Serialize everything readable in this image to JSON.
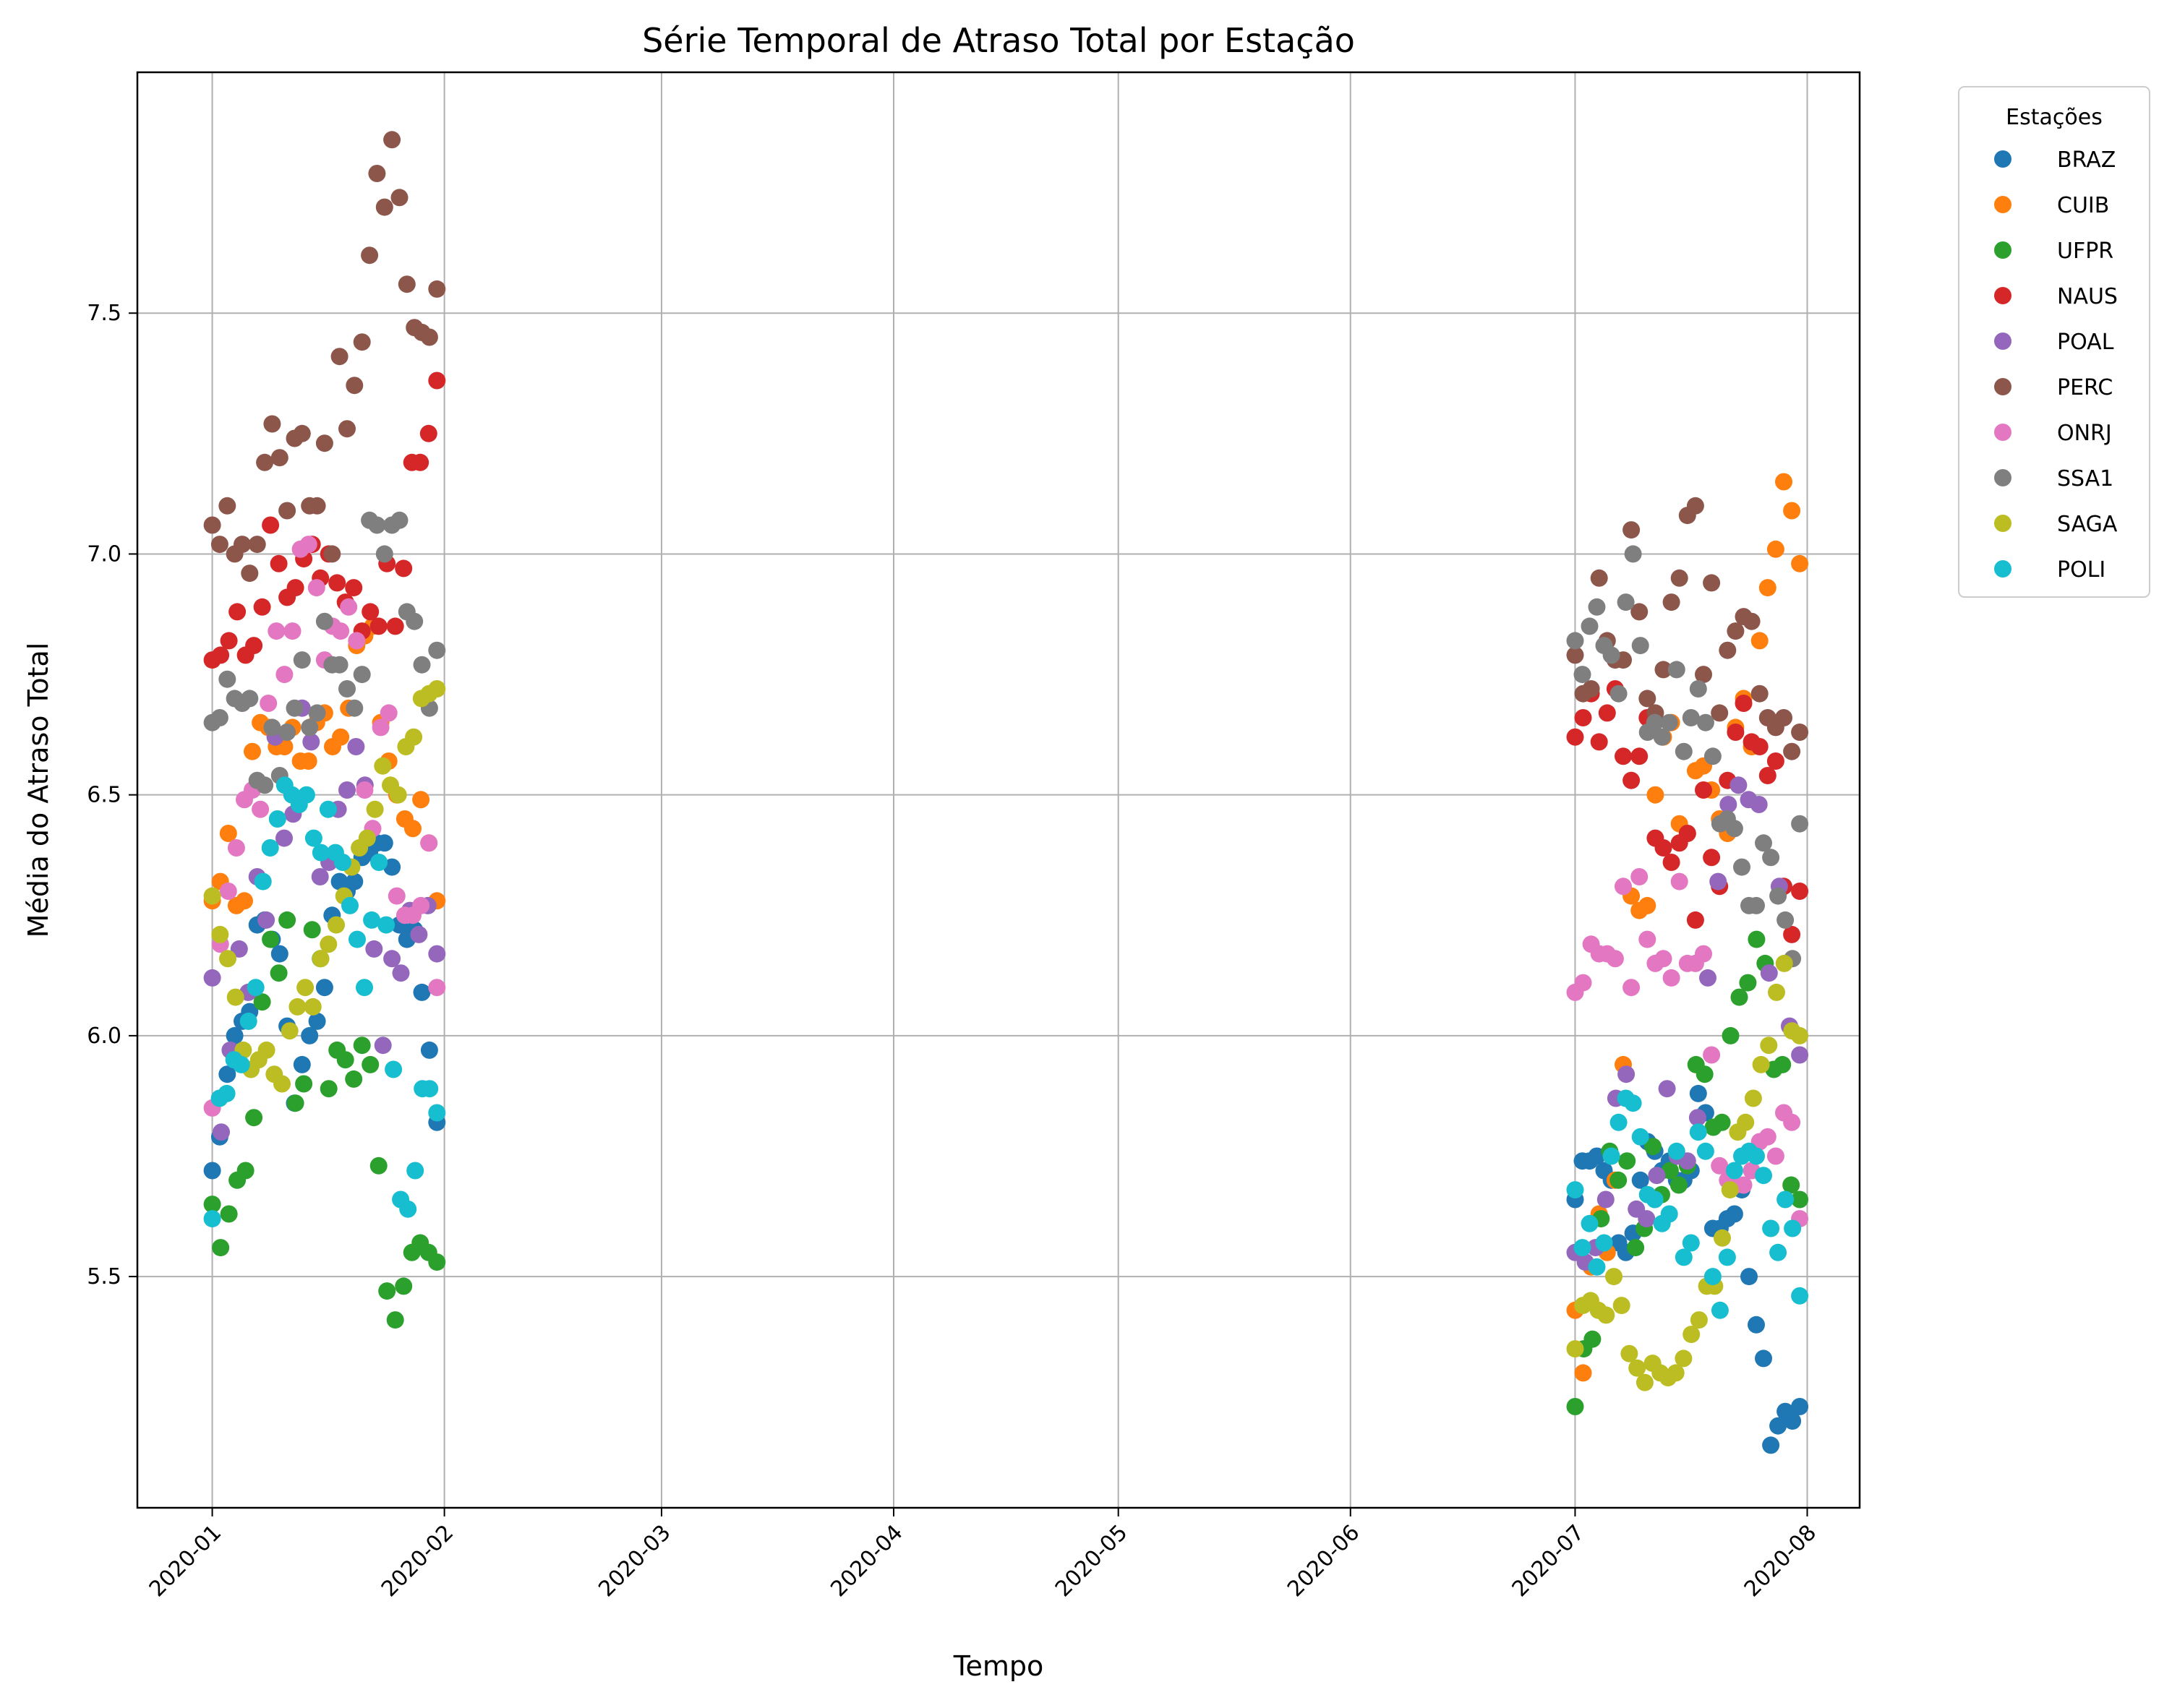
{
  "chart_data": {
    "type": "scatter",
    "title": "Série Temporal de Atraso Total por Estação",
    "xlabel": "Tempo",
    "ylabel": "Média do Atraso Total",
    "x_axis": "date",
    "xlim": [
      "2019-12-22",
      "2020-08-08"
    ],
    "ylim": [
      5.02,
      8.0
    ],
    "x_ticks": [
      "2020-01-01",
      "2020-02-01",
      "2020-03-01",
      "2020-04-01",
      "2020-05-01",
      "2020-06-01",
      "2020-07-01",
      "2020-08-01"
    ],
    "x_tick_labels": [
      "2020-01",
      "2020-02",
      "2020-03",
      "2020-04",
      "2020-05",
      "2020-06",
      "2020-07",
      "2020-08"
    ],
    "y_ticks": [
      5.5,
      6.0,
      6.5,
      7.0,
      7.5
    ],
    "y_tick_labels": [
      "5.5",
      "6.0",
      "6.5",
      "7.0",
      "7.5"
    ],
    "grid": true,
    "legend": {
      "title": "Estações",
      "placement": "outside-top-right"
    },
    "series": [
      {
        "name": "BRAZ",
        "color": "#1f77b4",
        "jan": [
          5.72,
          5.79,
          5.92,
          6.0,
          6.03,
          6.05,
          6.23,
          6.24,
          6.2,
          6.17,
          6.02,
          5.86,
          5.94,
          6.0,
          6.03,
          6.1,
          6.25,
          6.32,
          6.3,
          6.32,
          6.37,
          6.38,
          6.4,
          6.4,
          6.35,
          6.23,
          6.2,
          6.22,
          6.09,
          5.97,
          5.82
        ],
        "jul": [
          5.66,
          5.74,
          5.74,
          5.75,
          5.72,
          5.7,
          5.57,
          5.55,
          5.59,
          5.7,
          5.78,
          5.76,
          5.72,
          5.74,
          5.7,
          5.7,
          5.72,
          5.88,
          5.84,
          5.6,
          5.6,
          5.62,
          5.63,
          5.68,
          5.5,
          5.4,
          5.33,
          5.15,
          5.19,
          5.22,
          5.2,
          5.23
        ]
      },
      {
        "name": "CUIB",
        "color": "#ff7f0e",
        "jan": [
          6.28,
          6.32,
          6.42,
          6.27,
          6.28,
          6.59,
          6.65,
          6.64,
          6.6,
          6.6,
          6.64,
          6.57,
          6.57,
          6.65,
          6.67,
          6.6,
          6.62,
          6.68,
          6.81,
          6.83,
          6.85,
          6.65,
          6.57,
          6.5,
          6.45,
          6.43,
          6.49,
          6.4,
          6.28
        ],
        "jul": [
          5.43,
          5.3,
          5.52,
          5.63,
          5.55,
          5.7,
          5.94,
          6.29,
          6.26,
          6.27,
          6.5,
          6.62,
          6.65,
          6.44,
          6.42,
          6.55,
          6.56,
          6.51,
          6.45,
          6.42,
          6.64,
          6.7,
          6.6,
          6.82,
          6.93,
          7.01,
          7.15,
          7.09,
          6.98
        ]
      },
      {
        "name": "UFPR",
        "color": "#2ca02c",
        "jan": [
          5.65,
          5.56,
          5.63,
          5.7,
          5.72,
          5.83,
          6.07,
          6.2,
          6.13,
          6.24,
          5.86,
          5.9,
          6.22,
          6.16,
          5.89,
          5.97,
          5.95,
          5.91,
          5.98,
          5.94,
          5.73,
          5.47,
          5.41,
          5.48,
          5.55,
          5.57,
          5.55,
          5.53
        ],
        "jul": [
          5.23,
          5.35,
          5.37,
          5.62,
          5.76,
          5.7,
          5.74,
          5.56,
          5.6,
          5.77,
          5.67,
          5.72,
          5.69,
          5.73,
          5.94,
          5.92,
          5.81,
          5.82,
          6.0,
          6.08,
          6.11,
          6.2,
          6.15,
          5.93,
          5.94,
          5.69,
          5.66
        ]
      },
      {
        "name": "NAUS",
        "color": "#d62728",
        "jan": [
          6.78,
          6.79,
          6.82,
          6.88,
          6.79,
          6.81,
          6.89,
          7.06,
          6.98,
          6.91,
          6.93,
          6.99,
          7.02,
          6.95,
          7.0,
          6.94,
          6.9,
          6.93,
          6.84,
          6.88,
          6.85,
          6.98,
          6.85,
          6.97,
          7.19,
          7.19,
          7.25,
          7.36
        ],
        "jul": [
          6.62,
          6.66,
          6.71,
          6.61,
          6.67,
          6.72,
          6.58,
          6.53,
          6.58,
          6.66,
          6.41,
          6.39,
          6.36,
          6.4,
          6.42,
          6.24,
          6.51,
          6.37,
          6.31,
          6.53,
          6.63,
          6.69,
          6.61,
          6.6,
          6.54,
          6.57,
          6.31,
          6.21,
          6.3
        ]
      },
      {
        "name": "POAL",
        "color": "#9467bd",
        "jan": [
          6.12,
          5.8,
          5.97,
          6.18,
          6.09,
          6.33,
          6.24,
          6.62,
          6.41,
          6.46,
          6.68,
          6.61,
          6.33,
          6.36,
          6.47,
          6.51,
          6.6,
          6.52,
          6.18,
          5.98,
          6.16,
          6.13,
          6.26,
          6.21,
          6.27,
          6.17
        ],
        "jul": [
          5.55,
          5.53,
          5.56,
          5.66,
          5.87,
          5.92,
          5.64,
          5.62,
          5.71,
          5.89,
          5.75,
          5.74,
          5.83,
          6.12,
          6.32,
          6.48,
          6.52,
          6.49,
          6.48,
          6.13,
          6.31,
          6.02,
          5.96
        ]
      },
      {
        "name": "PERC",
        "color": "#8c564b",
        "jan": [
          7.06,
          7.02,
          7.1,
          7.0,
          7.02,
          6.96,
          7.02,
          7.19,
          7.27,
          7.2,
          7.09,
          7.24,
          7.25,
          7.1,
          7.1,
          7.23,
          7.0,
          7.41,
          7.26,
          7.35,
          7.44,
          7.62,
          7.79,
          7.72,
          7.86,
          7.74,
          7.56,
          7.47,
          7.46,
          7.45,
          7.55
        ],
        "jul": [
          6.79,
          6.71,
          6.72,
          6.95,
          6.82,
          6.78,
          6.78,
          7.05,
          6.88,
          6.7,
          6.67,
          6.76,
          6.9,
          6.95,
          7.08,
          7.1,
          6.75,
          6.94,
          6.67,
          6.8,
          6.84,
          6.87,
          6.86,
          6.71,
          6.66,
          6.64,
          6.66,
          6.59,
          6.63
        ]
      },
      {
        "name": "ONRJ",
        "color": "#e377c2",
        "jan": [
          5.85,
          6.19,
          6.3,
          6.39,
          6.49,
          6.51,
          6.47,
          6.69,
          6.84,
          6.75,
          6.84,
          7.01,
          7.02,
          6.93,
          6.78,
          6.85,
          6.84,
          6.89,
          6.82,
          6.51,
          6.43,
          6.64,
          6.67,
          6.29,
          6.25,
          6.25,
          6.27,
          6.4,
          6.1
        ],
        "jul": [
          6.09,
          6.11,
          6.19,
          6.17,
          6.17,
          6.16,
          6.31,
          6.1,
          6.33,
          6.2,
          6.15,
          6.16,
          6.12,
          6.32,
          6.15,
          6.15,
          6.17,
          5.96,
          5.73,
          5.7,
          5.69,
          5.69,
          5.72,
          5.78,
          5.79,
          5.75,
          5.84,
          5.82,
          5.62
        ]
      },
      {
        "name": "SSA1",
        "color": "#7f7f7f",
        "jan": [
          6.65,
          6.66,
          6.74,
          6.7,
          6.69,
          6.7,
          6.53,
          6.52,
          6.64,
          6.54,
          6.63,
          6.68,
          6.78,
          6.64,
          6.67,
          6.86,
          6.77,
          6.77,
          6.72,
          6.68,
          6.75,
          7.07,
          7.06,
          7.0,
          7.06,
          7.07,
          6.88,
          6.86,
          6.77,
          6.68,
          6.8
        ],
        "jul": [
          6.82,
          6.75,
          6.85,
          6.89,
          6.81,
          6.79,
          6.71,
          6.9,
          7.0,
          6.81,
          6.63,
          6.65,
          6.62,
          6.65,
          6.76,
          6.59,
          6.66,
          6.72,
          6.65,
          6.58,
          6.44,
          6.45,
          6.43,
          6.35,
          6.27,
          6.27,
          6.4,
          6.37,
          6.29,
          6.24,
          6.16,
          6.44
        ]
      },
      {
        "name": "SAGA",
        "color": "#bcbd22",
        "jan": [
          6.29,
          6.21,
          6.16,
          6.08,
          5.97,
          5.93,
          5.95,
          5.97,
          5.92,
          5.9,
          6.01,
          6.06,
          6.1,
          6.06,
          6.16,
          6.19,
          6.23,
          6.29,
          6.35,
          6.39,
          6.41,
          6.47,
          6.56,
          6.52,
          6.5,
          6.6,
          6.62,
          6.7,
          6.71,
          6.72
        ],
        "jul": [
          5.35,
          5.44,
          5.45,
          5.43,
          5.42,
          5.5,
          5.44,
          5.34,
          5.31,
          5.28,
          5.32,
          5.3,
          5.29,
          5.3,
          5.33,
          5.38,
          5.41,
          5.48,
          5.48,
          5.58,
          5.68,
          5.8,
          5.82,
          5.87,
          5.94,
          5.98,
          6.09,
          6.15,
          6.01,
          6.0
        ]
      },
      {
        "name": "POLI",
        "color": "#17becf",
        "jan": [
          5.62,
          5.87,
          5.88,
          5.95,
          5.94,
          6.03,
          6.1,
          6.32,
          6.39,
          6.45,
          6.52,
          6.5,
          6.48,
          6.5,
          6.41,
          6.38,
          6.47,
          6.38,
          6.36,
          6.27,
          6.2,
          6.1,
          6.24,
          6.36,
          6.23,
          5.93,
          5.66,
          5.64,
          5.72,
          5.89,
          5.89,
          5.84
        ],
        "jul": [
          5.68,
          5.56,
          5.61,
          5.52,
          5.57,
          5.75,
          5.82,
          5.87,
          5.86,
          5.79,
          5.67,
          5.66,
          5.61,
          5.63,
          5.76,
          5.54,
          5.57,
          5.8,
          5.76,
          5.5,
          5.43,
          5.54,
          5.72,
          5.75,
          5.76,
          5.75,
          5.71,
          5.6,
          5.55,
          5.66,
          5.6,
          5.46
        ]
      }
    ]
  }
}
